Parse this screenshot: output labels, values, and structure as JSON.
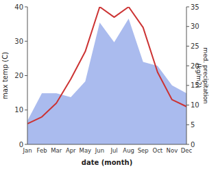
{
  "chart_data": {
    "type": "line",
    "xlabel": "date (month)",
    "ylabel": "max temp (C)",
    "y2label": "med. precipitation\n(kg/m2)",
    "categories": [
      "Jan",
      "Feb",
      "Mar",
      "Apr",
      "May",
      "Jun",
      "Jul",
      "Aug",
      "Sep",
      "Oct",
      "Nov",
      "Dec"
    ],
    "series": [
      {
        "type": "area",
        "color": "#aabbee",
        "axis": "y2",
        "values": [
          6,
          13,
          13,
          12,
          16,
          31,
          26,
          32,
          21,
          20,
          15,
          13
        ]
      },
      {
        "type": "line",
        "color": "#cc3333",
        "values": [
          6,
          8,
          12,
          19,
          27,
          40,
          37,
          40,
          34,
          21,
          13,
          11
        ]
      }
    ],
    "ylim": [
      0,
      40
    ],
    "yticks": [
      0,
      10,
      20,
      30,
      40
    ],
    "y2lim": [
      0,
      35
    ],
    "y2ticks": [
      0,
      5,
      10,
      15,
      20,
      25,
      30,
      35
    ]
  }
}
